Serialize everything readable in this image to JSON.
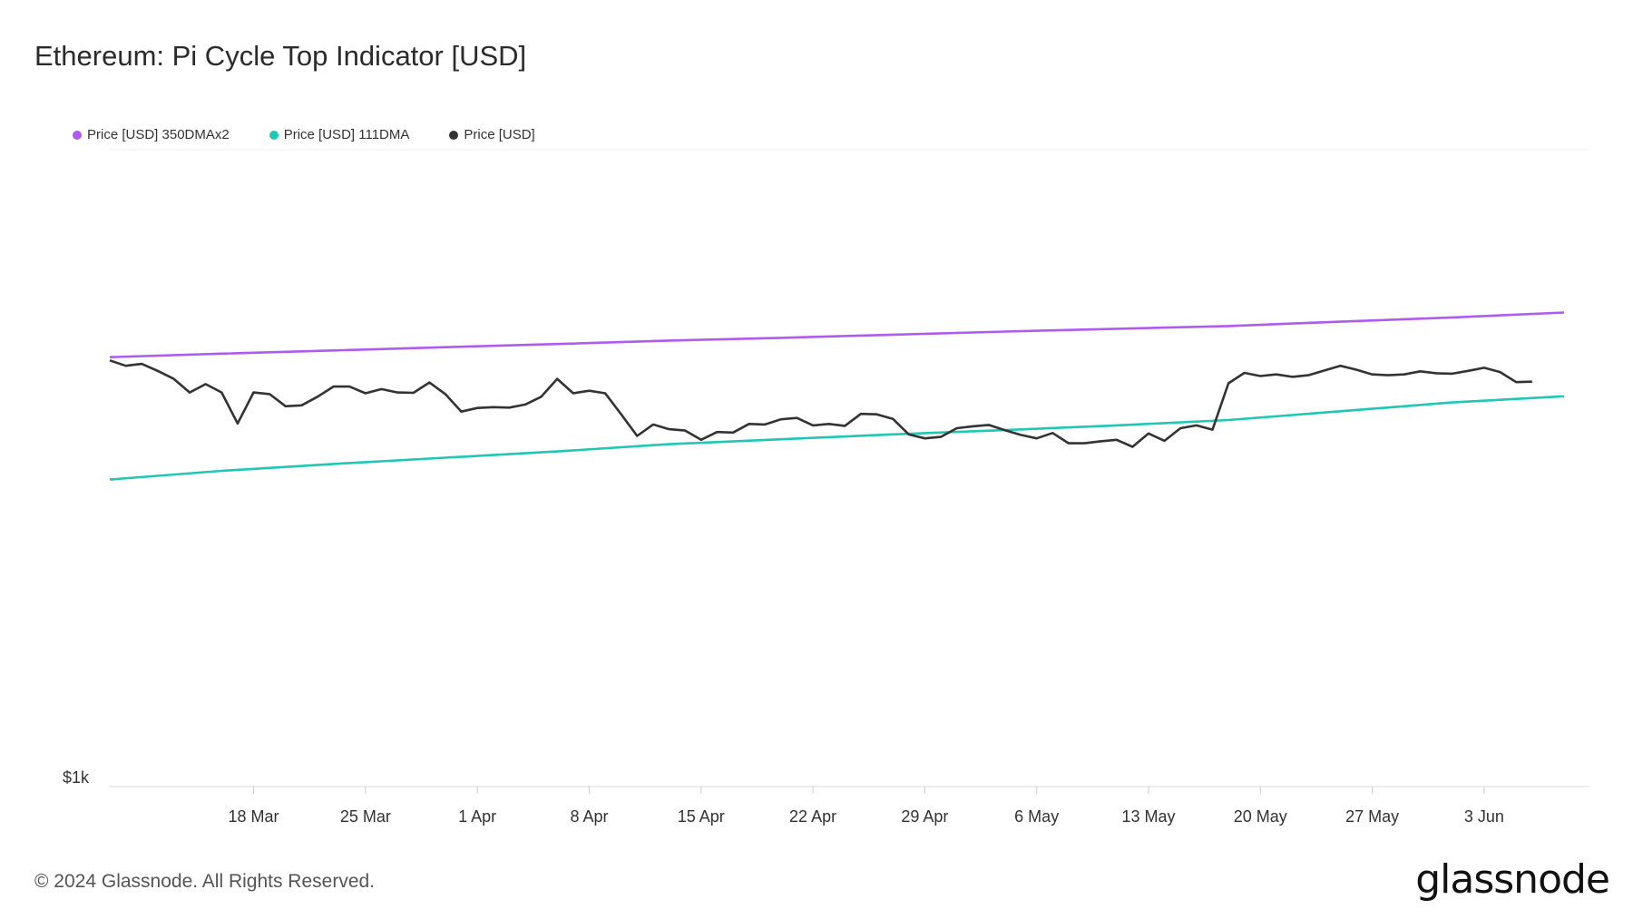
{
  "title": "Ethereum: Pi Cycle Top Indicator [USD]",
  "footer": "© 2024 Glassnode. All Rights Reserved.",
  "logo": "glassnode",
  "chart_data": {
    "type": "line",
    "title": "Ethereum: Pi Cycle Top Indicator [USD]",
    "log_scale": true,
    "ylim": [
      1000,
      8000
    ],
    "y_ticks": [
      {
        "value": 1000,
        "label": "$1k"
      }
    ],
    "x_start": "2024-03-09",
    "x_end": "2024-06-08",
    "x_ticks": [
      {
        "date": "2024-03-18",
        "label": "18 Mar"
      },
      {
        "date": "2024-03-25",
        "label": "25 Mar"
      },
      {
        "date": "2024-04-01",
        "label": "1 Apr"
      },
      {
        "date": "2024-04-08",
        "label": "8 Apr"
      },
      {
        "date": "2024-04-15",
        "label": "15 Apr"
      },
      {
        "date": "2024-04-22",
        "label": "22 Apr"
      },
      {
        "date": "2024-04-29",
        "label": "29 Apr"
      },
      {
        "date": "2024-05-06",
        "label": "6 May"
      },
      {
        "date": "2024-05-13",
        "label": "13 May"
      },
      {
        "date": "2024-05-20",
        "label": "20 May"
      },
      {
        "date": "2024-05-27",
        "label": "27 May"
      },
      {
        "date": "2024-06-03",
        "label": "3 Jun"
      }
    ],
    "legend_position": "top-left",
    "grid": false,
    "series": [
      {
        "name": "Price [USD] 350DMAx2",
        "color": "#b05bef",
        "points": [
          [
            "2024-03-09",
            4024
          ],
          [
            "2024-03-16",
            4071
          ],
          [
            "2024-03-23",
            4114
          ],
          [
            "2024-03-30",
            4159
          ],
          [
            "2024-04-06",
            4203
          ],
          [
            "2024-04-13",
            4251
          ],
          [
            "2024-04-20",
            4290
          ],
          [
            "2024-04-27",
            4335
          ],
          [
            "2024-05-04",
            4380
          ],
          [
            "2024-05-11",
            4421
          ],
          [
            "2024-05-18",
            4460
          ],
          [
            "2024-05-25",
            4525
          ],
          [
            "2024-06-01",
            4590
          ],
          [
            "2024-06-08",
            4665
          ]
        ]
      },
      {
        "name": "Price [USD] 111DMA",
        "color": "#1ec8b4",
        "points": [
          [
            "2024-03-09",
            2683
          ],
          [
            "2024-03-16",
            2761
          ],
          [
            "2024-03-23",
            2825
          ],
          [
            "2024-03-30",
            2884
          ],
          [
            "2024-04-06",
            2945
          ],
          [
            "2024-04-13",
            3016
          ],
          [
            "2024-04-20",
            3066
          ],
          [
            "2024-04-27",
            3116
          ],
          [
            "2024-05-04",
            3160
          ],
          [
            "2024-05-11",
            3210
          ],
          [
            "2024-05-18",
            3267
          ],
          [
            "2024-05-25",
            3364
          ],
          [
            "2024-06-01",
            3463
          ],
          [
            "2024-06-08",
            3535
          ]
        ]
      },
      {
        "name": "Price [USD]",
        "color": "#333333",
        "points": [
          [
            "2024-03-09",
            3980
          ],
          [
            "2024-03-10",
            3910
          ],
          [
            "2024-03-11",
            3935
          ],
          [
            "2024-03-12",
            3845
          ],
          [
            "2024-03-13",
            3745
          ],
          [
            "2024-03-14",
            3580
          ],
          [
            "2024-03-15",
            3680
          ],
          [
            "2024-03-16",
            3580
          ],
          [
            "2024-03-17",
            3230
          ],
          [
            "2024-03-18",
            3580
          ],
          [
            "2024-03-19",
            3560
          ],
          [
            "2024-03-20",
            3420
          ],
          [
            "2024-03-21",
            3430
          ],
          [
            "2024-03-22",
            3530
          ],
          [
            "2024-03-23",
            3650
          ],
          [
            "2024-03-24",
            3650
          ],
          [
            "2024-03-25",
            3570
          ],
          [
            "2024-03-26",
            3620
          ],
          [
            "2024-03-27",
            3580
          ],
          [
            "2024-03-28",
            3575
          ],
          [
            "2024-03-29",
            3700
          ],
          [
            "2024-03-30",
            3560
          ],
          [
            "2024-03-31",
            3360
          ],
          [
            "2024-04-01",
            3400
          ],
          [
            "2024-04-02",
            3410
          ],
          [
            "2024-04-03",
            3405
          ],
          [
            "2024-04-04",
            3440
          ],
          [
            "2024-04-05",
            3530
          ],
          [
            "2024-04-06",
            3745
          ],
          [
            "2024-04-07",
            3570
          ],
          [
            "2024-04-08",
            3600
          ],
          [
            "2024-04-09",
            3570
          ],
          [
            "2024-04-10",
            3330
          ],
          [
            "2024-04-11",
            3100
          ],
          [
            "2024-04-12",
            3220
          ],
          [
            "2024-04-13",
            3170
          ],
          [
            "2024-04-14",
            3155
          ],
          [
            "2024-04-15",
            3060
          ],
          [
            "2024-04-16",
            3140
          ],
          [
            "2024-04-17",
            3135
          ],
          [
            "2024-04-18",
            3225
          ],
          [
            "2024-04-19",
            3220
          ],
          [
            "2024-04-20",
            3275
          ],
          [
            "2024-04-21",
            3290
          ],
          [
            "2024-04-22",
            3210
          ],
          [
            "2024-04-23",
            3225
          ],
          [
            "2024-04-24",
            3205
          ],
          [
            "2024-04-25",
            3335
          ],
          [
            "2024-04-26",
            3330
          ],
          [
            "2024-04-27",
            3280
          ],
          [
            "2024-04-28",
            3115
          ],
          [
            "2024-04-29",
            3075
          ],
          [
            "2024-04-30",
            3090
          ],
          [
            "2024-05-01",
            3180
          ],
          [
            "2024-05-02",
            3200
          ],
          [
            "2024-05-03",
            3215
          ],
          [
            "2024-05-04",
            3160
          ],
          [
            "2024-05-05",
            3110
          ],
          [
            "2024-05-06",
            3075
          ],
          [
            "2024-05-07",
            3130
          ],
          [
            "2024-05-08",
            3025
          ],
          [
            "2024-05-09",
            3025
          ],
          [
            "2024-05-10",
            3045
          ],
          [
            "2024-05-11",
            3060
          ],
          [
            "2024-05-12",
            2990
          ],
          [
            "2024-05-13",
            3125
          ],
          [
            "2024-05-14",
            3050
          ],
          [
            "2024-05-15",
            3180
          ],
          [
            "2024-05-16",
            3210
          ],
          [
            "2024-05-17",
            3165
          ],
          [
            "2024-05-18",
            3690
          ],
          [
            "2024-05-19",
            3820
          ],
          [
            "2024-05-20",
            3780
          ],
          [
            "2024-05-21",
            3800
          ],
          [
            "2024-05-22",
            3770
          ],
          [
            "2024-05-23",
            3790
          ],
          [
            "2024-05-24",
            3850
          ],
          [
            "2024-05-25",
            3910
          ],
          [
            "2024-05-26",
            3860
          ],
          [
            "2024-05-27",
            3800
          ],
          [
            "2024-05-28",
            3790
          ],
          [
            "2024-05-29",
            3800
          ],
          [
            "2024-05-30",
            3840
          ],
          [
            "2024-05-31",
            3815
          ],
          [
            "2024-06-01",
            3810
          ],
          [
            "2024-06-02",
            3845
          ],
          [
            "2024-06-03",
            3885
          ],
          [
            "2024-06-04",
            3830
          ],
          [
            "2024-06-05",
            3705
          ],
          [
            "2024-06-06",
            3710
          ]
        ]
      }
    ]
  }
}
